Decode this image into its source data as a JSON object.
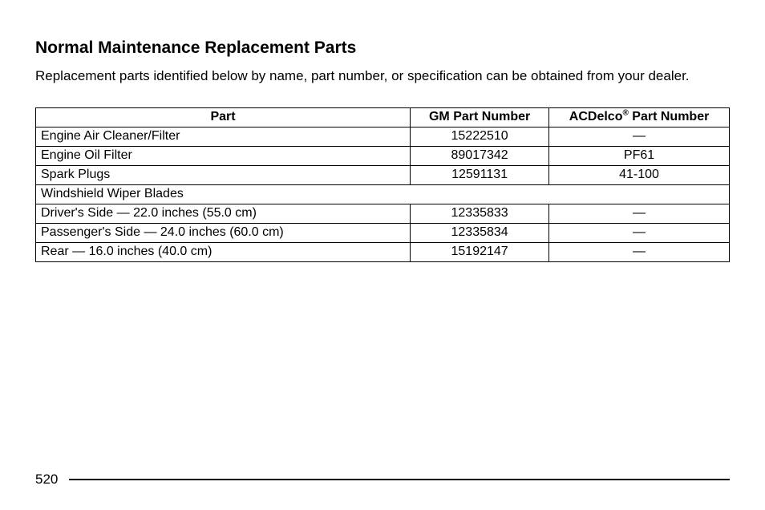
{
  "heading": "Normal Maintenance Replacement Parts",
  "intro": "Replacement parts identified below by name, part number, or specification can be obtained from your dealer.",
  "table": {
    "columns": {
      "part": "Part",
      "gm": "GM Part Number",
      "ac_prefix": "ACDelco",
      "ac_suffix": " Part Number"
    },
    "rows": [
      {
        "type": "data",
        "part": "Engine Air Cleaner/Filter",
        "gm": "15222510",
        "ac": "—",
        "indent": false
      },
      {
        "type": "data",
        "part": "Engine Oil Filter",
        "gm": "89017342",
        "ac": "PF61",
        "indent": false
      },
      {
        "type": "data",
        "part": "Spark Plugs",
        "gm": "12591131",
        "ac": "41-100",
        "indent": false
      },
      {
        "type": "section",
        "part": "Windshield Wiper Blades"
      },
      {
        "type": "data",
        "part": "Driver's Side — 22.0 inches (55.0 cm)",
        "gm": "12335833",
        "ac": "—",
        "indent": true
      },
      {
        "type": "data",
        "part": "Passenger's Side — 24.0 inches (60.0 cm)",
        "gm": "12335834",
        "ac": "—",
        "indent": true
      },
      {
        "type": "data",
        "part": "Rear — 16.0 inches (40.0 cm)",
        "gm": "15192147",
        "ac": "—",
        "indent": true
      }
    ]
  },
  "page_number": "520",
  "colors": {
    "text": "#000000",
    "background": "#ffffff",
    "border": "#000000",
    "rule": "#000000"
  }
}
